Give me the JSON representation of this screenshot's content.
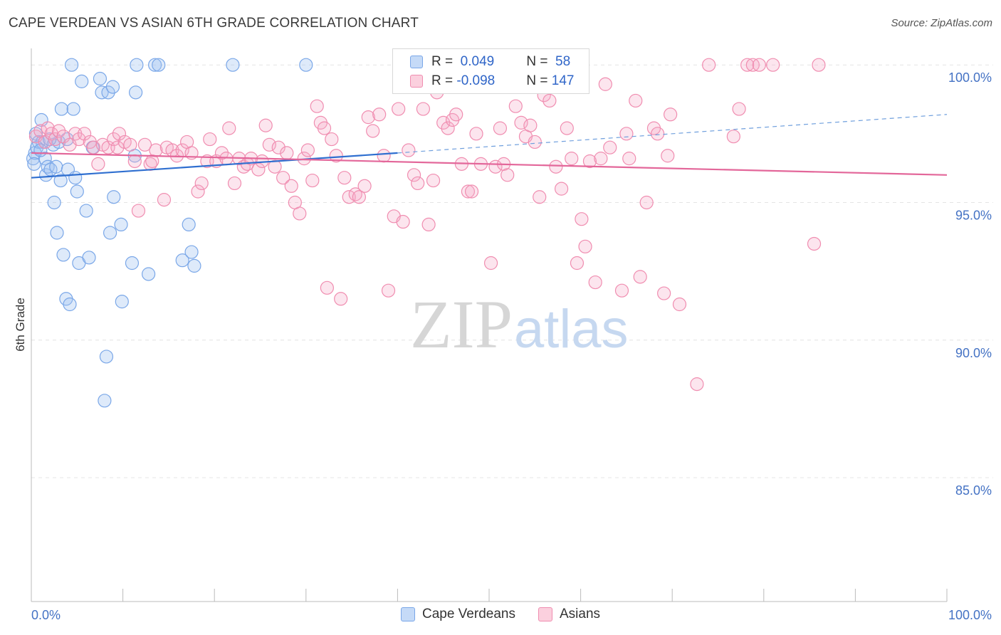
{
  "title": "CAPE VERDEAN VS ASIAN 6TH GRADE CORRELATION CHART",
  "source": "Source: ZipAtlas.com",
  "watermark": {
    "part1": "ZIP",
    "part2": "atlas"
  },
  "legend_box": {
    "rows": [
      {
        "r_label": "R = ",
        "r_value": " 0.049",
        "n_label": "N = ",
        "n_value": " 58",
        "color": "#7aa7e8"
      },
      {
        "r_label": "R = ",
        "r_value": "-0.098",
        "n_label": "N = ",
        "n_value": "147",
        "color": "#f08db0"
      }
    ]
  },
  "bottom_legend": [
    {
      "label": "Cape Verdeans",
      "color": "#7aa7e8"
    },
    {
      "label": "Asians",
      "color": "#f08db0"
    }
  ],
  "chart_data": {
    "type": "scatter",
    "title": "CAPE VERDEAN VS ASIAN 6TH GRADE CORRELATION CHART",
    "xlabel": "",
    "ylabel": "6th Grade",
    "xlim": [
      0,
      100
    ],
    "ylim": [
      80.5,
      100.6
    ],
    "x_tick_labels": [
      "0.0%",
      "100.0%"
    ],
    "y_ticks": [
      85,
      90,
      95,
      100
    ],
    "y_tick_labels": [
      "85.0%",
      "90.0%",
      "95.0%",
      "100.0%"
    ],
    "grid": true,
    "legend": "top-center",
    "series": [
      {
        "name": "Cape Verdeans",
        "color": "#7aa7e8",
        "trend": {
          "x": [
            0,
            40,
            100
          ],
          "y": [
            95.9,
            96.8,
            98.2
          ],
          "solid_until": 40
        },
        "points": [
          [
            0.2,
            96.6
          ],
          [
            0.4,
            96.8
          ],
          [
            0.5,
            97.5
          ],
          [
            0.8,
            97.2
          ],
          [
            1.1,
            98.0
          ],
          [
            1.2,
            97.2
          ],
          [
            1.5,
            96.6
          ],
          [
            1.6,
            96.0
          ],
          [
            1.8,
            96.3
          ],
          [
            2.1,
            96.2
          ],
          [
            2.4,
            97.1
          ],
          [
            2.5,
            95.0
          ],
          [
            2.7,
            96.3
          ],
          [
            2.8,
            93.9
          ],
          [
            3.0,
            97.2
          ],
          [
            3.2,
            95.8
          ],
          [
            3.3,
            98.4
          ],
          [
            3.5,
            93.1
          ],
          [
            3.8,
            91.5
          ],
          [
            3.9,
            97.3
          ],
          [
            4.0,
            96.2
          ],
          [
            4.2,
            91.3
          ],
          [
            4.4,
            100.0
          ],
          [
            4.6,
            98.4
          ],
          [
            4.8,
            95.9
          ],
          [
            5.0,
            95.4
          ],
          [
            5.2,
            92.8
          ],
          [
            5.5,
            99.4
          ],
          [
            6.0,
            94.7
          ],
          [
            6.3,
            93.0
          ],
          [
            6.7,
            97.0
          ],
          [
            7.5,
            99.5
          ],
          [
            7.7,
            99.0
          ],
          [
            8.0,
            87.8
          ],
          [
            8.2,
            89.4
          ],
          [
            8.4,
            99.0
          ],
          [
            8.6,
            93.9
          ],
          [
            8.9,
            99.2
          ],
          [
            9.0,
            95.2
          ],
          [
            9.8,
            94.2
          ],
          [
            9.9,
            91.4
          ],
          [
            11.0,
            92.8
          ],
          [
            11.3,
            96.7
          ],
          [
            11.4,
            99.0
          ],
          [
            11.5,
            100.0
          ],
          [
            12.8,
            92.4
          ],
          [
            13.5,
            100.0
          ],
          [
            13.9,
            100.0
          ],
          [
            16.5,
            92.9
          ],
          [
            17.2,
            94.2
          ],
          [
            17.5,
            93.2
          ],
          [
            17.8,
            92.7
          ],
          [
            22.0,
            100.0
          ],
          [
            30.0,
            100.0
          ],
          [
            0.3,
            96.4
          ],
          [
            0.6,
            97.0
          ],
          [
            1.0,
            96.9
          ],
          [
            2.0,
            97.3
          ]
        ]
      },
      {
        "name": "Asians",
        "color": "#f08db0",
        "trend": {
          "x": [
            0,
            100
          ],
          "y": [
            96.8,
            96.0
          ]
        },
        "points": [
          [
            0.5,
            97.4
          ],
          [
            1.0,
            97.6
          ],
          [
            1.5,
            97.2
          ],
          [
            1.8,
            97.7
          ],
          [
            2.2,
            97.5
          ],
          [
            2.6,
            97.3
          ],
          [
            3.0,
            97.6
          ],
          [
            3.5,
            97.4
          ],
          [
            4.2,
            97.1
          ],
          [
            4.8,
            97.5
          ],
          [
            5.2,
            97.3
          ],
          [
            5.8,
            97.5
          ],
          [
            6.4,
            97.2
          ],
          [
            6.8,
            97.0
          ],
          [
            7.3,
            96.4
          ],
          [
            7.8,
            97.1
          ],
          [
            8.4,
            97.0
          ],
          [
            9.0,
            97.3
          ],
          [
            9.4,
            97.0
          ],
          [
            9.6,
            97.5
          ],
          [
            10.2,
            97.2
          ],
          [
            10.8,
            97.1
          ],
          [
            11.3,
            96.5
          ],
          [
            11.7,
            94.7
          ],
          [
            12.4,
            97.1
          ],
          [
            13.0,
            96.4
          ],
          [
            13.2,
            96.5
          ],
          [
            13.6,
            96.9
          ],
          [
            14.5,
            95.1
          ],
          [
            14.8,
            97.0
          ],
          [
            15.4,
            96.9
          ],
          [
            15.9,
            96.7
          ],
          [
            16.5,
            96.9
          ],
          [
            17.0,
            97.2
          ],
          [
            17.5,
            96.8
          ],
          [
            18.2,
            95.4
          ],
          [
            18.6,
            95.7
          ],
          [
            19.2,
            96.5
          ],
          [
            19.5,
            97.3
          ],
          [
            20.2,
            96.5
          ],
          [
            20.8,
            96.8
          ],
          [
            21.3,
            96.6
          ],
          [
            21.6,
            97.7
          ],
          [
            22.2,
            95.7
          ],
          [
            22.7,
            96.6
          ],
          [
            23.2,
            96.3
          ],
          [
            23.6,
            96.4
          ],
          [
            24.0,
            96.6
          ],
          [
            24.8,
            96.2
          ],
          [
            25.2,
            96.5
          ],
          [
            25.6,
            97.8
          ],
          [
            26.0,
            97.1
          ],
          [
            26.6,
            96.3
          ],
          [
            27.0,
            97.0
          ],
          [
            27.5,
            95.9
          ],
          [
            27.9,
            96.8
          ],
          [
            28.4,
            95.6
          ],
          [
            28.8,
            95.0
          ],
          [
            29.3,
            94.6
          ],
          [
            29.8,
            96.6
          ],
          [
            30.2,
            96.9
          ],
          [
            30.7,
            95.8
          ],
          [
            31.2,
            98.5
          ],
          [
            31.6,
            97.9
          ],
          [
            32.0,
            97.7
          ],
          [
            32.3,
            91.9
          ],
          [
            32.8,
            97.3
          ],
          [
            33.3,
            96.7
          ],
          [
            33.8,
            91.5
          ],
          [
            34.2,
            95.9
          ],
          [
            34.7,
            95.2
          ],
          [
            35.4,
            95.3
          ],
          [
            35.8,
            95.2
          ],
          [
            36.4,
            95.6
          ],
          [
            36.8,
            98.1
          ],
          [
            37.3,
            97.6
          ],
          [
            38.0,
            98.2
          ],
          [
            38.5,
            96.7
          ],
          [
            39.0,
            91.8
          ],
          [
            39.6,
            94.5
          ],
          [
            40.1,
            98.4
          ],
          [
            40.6,
            94.3
          ],
          [
            41.2,
            96.9
          ],
          [
            41.8,
            96.0
          ],
          [
            42.2,
            95.7
          ],
          [
            42.8,
            98.4
          ],
          [
            43.4,
            94.2
          ],
          [
            43.9,
            95.8
          ],
          [
            44.3,
            99.0
          ],
          [
            45.0,
            97.9
          ],
          [
            45.5,
            97.7
          ],
          [
            46.0,
            98.0
          ],
          [
            46.4,
            98.2
          ],
          [
            47.0,
            96.4
          ],
          [
            47.7,
            95.4
          ],
          [
            48.1,
            95.4
          ],
          [
            48.6,
            97.5
          ],
          [
            49.1,
            96.4
          ],
          [
            50.2,
            92.8
          ],
          [
            50.7,
            96.3
          ],
          [
            51.2,
            97.7
          ],
          [
            51.6,
            96.4
          ],
          [
            52.0,
            96.0
          ],
          [
            52.9,
            98.5
          ],
          [
            53.5,
            97.9
          ],
          [
            54.0,
            97.4
          ],
          [
            54.5,
            97.8
          ],
          [
            55.0,
            97.2
          ],
          [
            55.5,
            95.2
          ],
          [
            56.0,
            98.9
          ],
          [
            56.6,
            98.7
          ],
          [
            57.3,
            96.3
          ],
          [
            57.9,
            95.5
          ],
          [
            58.5,
            97.7
          ],
          [
            59.0,
            96.6
          ],
          [
            59.6,
            92.8
          ],
          [
            60.1,
            94.4
          ],
          [
            60.5,
            93.4
          ],
          [
            61.0,
            96.5
          ],
          [
            61.6,
            92.1
          ],
          [
            62.2,
            96.6
          ],
          [
            62.7,
            99.3
          ],
          [
            63.2,
            97.0
          ],
          [
            64.5,
            91.8
          ],
          [
            65.0,
            97.5
          ],
          [
            65.3,
            96.6
          ],
          [
            66.0,
            98.7
          ],
          [
            66.5,
            92.3
          ],
          [
            67.2,
            95.0
          ],
          [
            68.0,
            97.7
          ],
          [
            68.4,
            97.5
          ],
          [
            69.1,
            91.7
          ],
          [
            69.5,
            96.7
          ],
          [
            69.8,
            98.2
          ],
          [
            70.8,
            91.3
          ],
          [
            72.7,
            88.4
          ],
          [
            74.0,
            100.0
          ],
          [
            76.7,
            97.4
          ],
          [
            77.3,
            98.4
          ],
          [
            78.2,
            100.0
          ],
          [
            78.8,
            100.0
          ],
          [
            79.5,
            100.0
          ],
          [
            81.0,
            100.0
          ],
          [
            86.0,
            100.0
          ],
          [
            85.5,
            93.5
          ]
        ]
      }
    ]
  }
}
